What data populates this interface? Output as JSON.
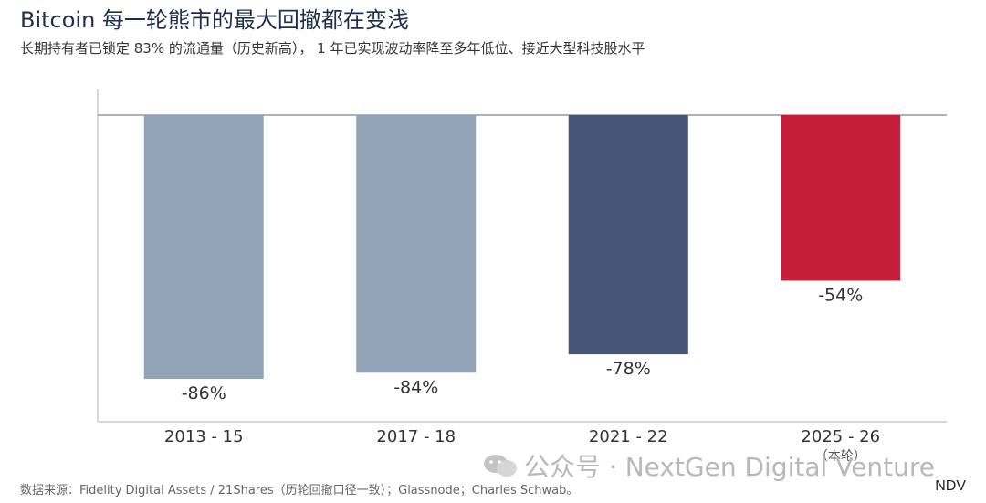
{
  "title": "Bitcoin 每一轮熊市的最大回撤都在变浅",
  "subtitle": "长期持有者已锁定 83% 的流通量（历史新高）， 1 年已实现波动率降至多年低位、接近大型科技股水平",
  "source": "数据来源：Fidelity Digital Assets / 21Shares（历轮回撤口径一致）；Glassnode；Charles Schwab。",
  "watermark": "公众号 · NextGen Digital Venture",
  "logo": "NDV",
  "colors": {
    "bar_past": "#94a4b8",
    "bar_2021": "#465475",
    "bar_current": "#c41e3a",
    "baseline": "#999999",
    "axis": "#cccccc"
  },
  "chart_data": {
    "type": "bar",
    "categories": [
      "2013 - 15",
      "2017 - 18",
      "2021 - 22",
      "2025 - 26"
    ],
    "category_sublabels": [
      "",
      "",
      "",
      "（本轮）"
    ],
    "values": [
      -86,
      -84,
      -78,
      -54
    ],
    "value_labels": [
      "-86%",
      "-84%",
      "-78%",
      "-54%"
    ],
    "ylim": [
      -100,
      0
    ],
    "grid": false,
    "legend": "none"
  }
}
